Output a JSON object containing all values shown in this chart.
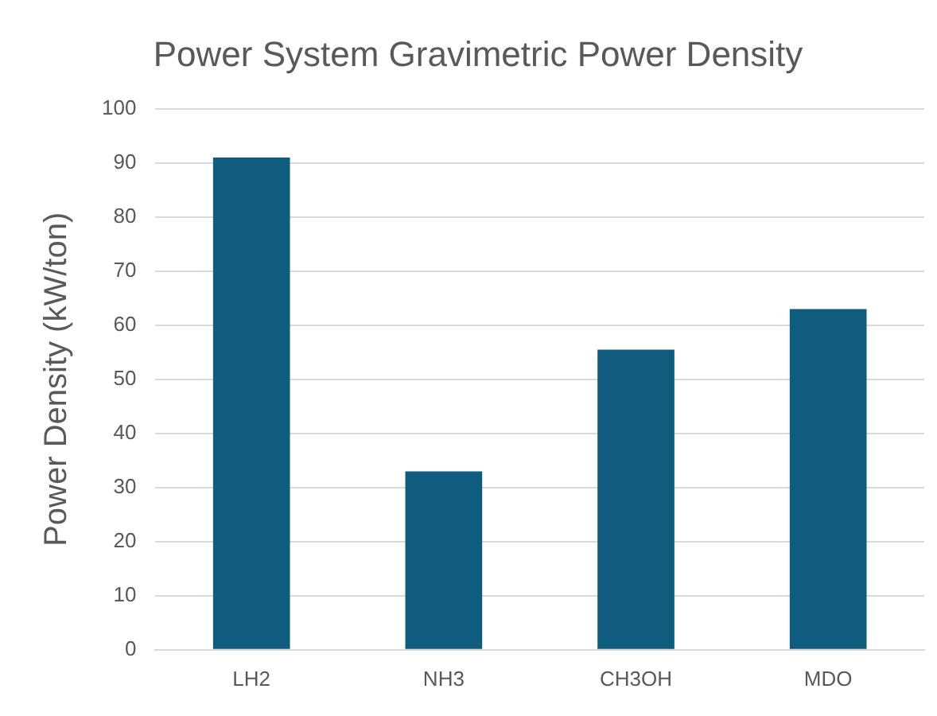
{
  "chart_data": {
    "type": "bar",
    "title": "Power System Gravimetric Power Density",
    "ylabel": "Power Density (kW/ton)",
    "categories": [
      "LH2",
      "NH3",
      "CH3OH",
      "MDO"
    ],
    "values": [
      91,
      33,
      55.5,
      63
    ],
    "color": "#0f5c7e",
    "ylim": [
      0,
      100
    ],
    "yticks": [
      0,
      10,
      20,
      30,
      40,
      50,
      60,
      70,
      80,
      90,
      100
    ],
    "grid": "y",
    "legend": false
  }
}
